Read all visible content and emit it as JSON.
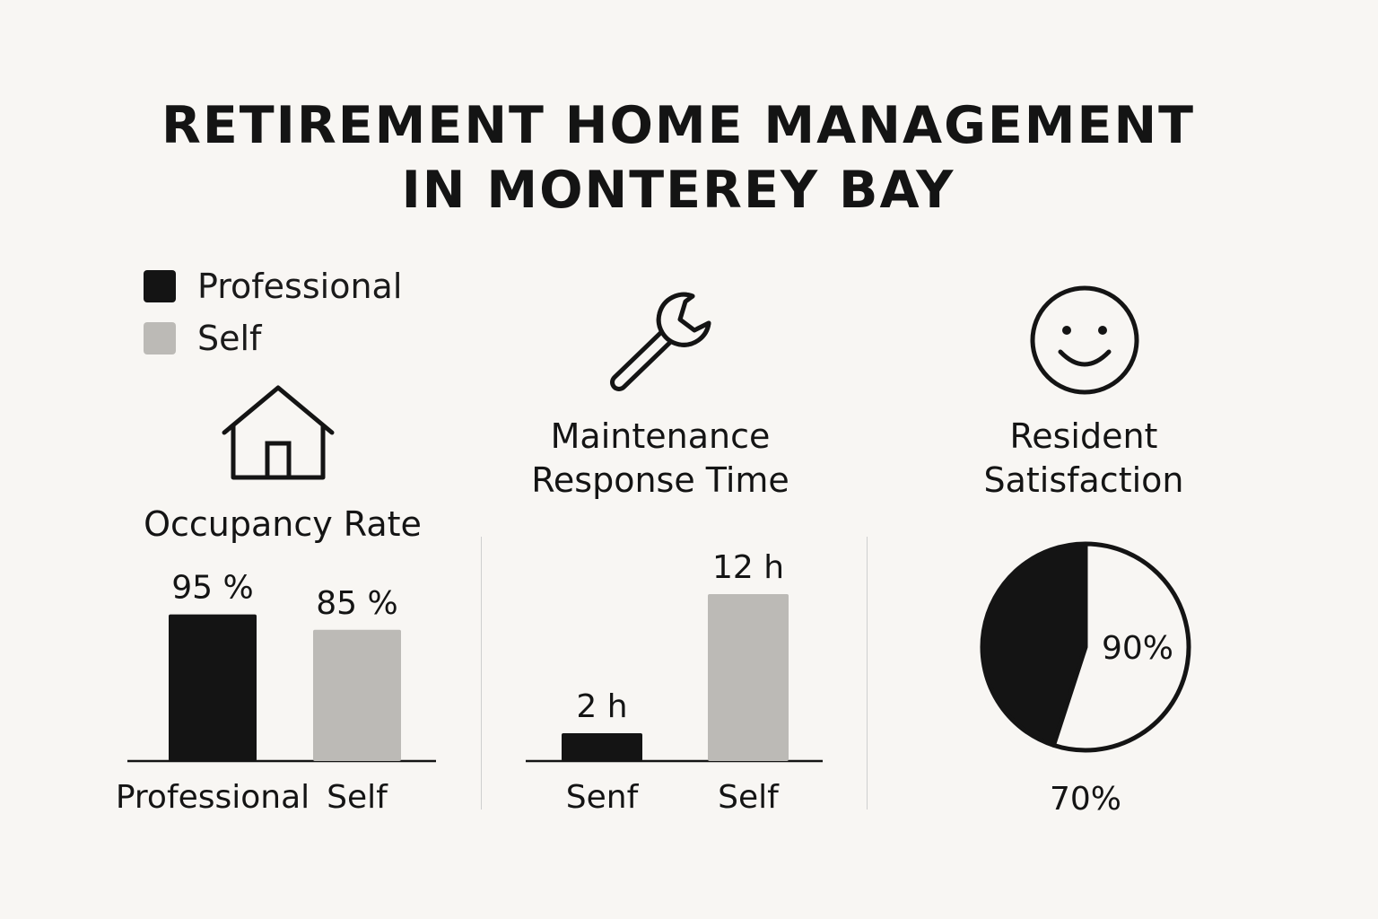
{
  "title": {
    "line1": "RETIREMENT HOME MANAGEMENT",
    "line2": "IN MONTEREY BAY"
  },
  "legend": [
    {
      "label": "Professional",
      "color": "#141414"
    },
    {
      "label": "Self",
      "color": "#bcbab6"
    }
  ],
  "icons": {
    "occupancy": "house-icon",
    "maintenance": "wrench-icon",
    "satisfaction": "smiley-face-icon"
  },
  "panels": {
    "occupancy": {
      "title": "Occupancy Rate"
    },
    "maintenance": {
      "title_line1": "Maintenance",
      "title_line2": "Response Time"
    },
    "satisfaction": {
      "title_line1": "Resident",
      "title_line2": "Satisfaction"
    }
  },
  "chart_data": [
    {
      "type": "bar",
      "title": "Occupancy Rate",
      "categories": [
        "Professional",
        "Self"
      ],
      "values": [
        95,
        85
      ],
      "value_labels": [
        "95 %",
        "85 %"
      ],
      "colors": [
        "#141414",
        "#bcbab6"
      ],
      "unit": "%"
    },
    {
      "type": "bar",
      "title": "Maintenance Response Time",
      "categories": [
        "Senf",
        "Self"
      ],
      "values": [
        2,
        12
      ],
      "value_labels": [
        "2 h",
        "12 h"
      ],
      "colors": [
        "#141414",
        "#bcbab6"
      ],
      "unit": "h"
    },
    {
      "type": "pie",
      "title": "Resident Satisfaction",
      "slices": [
        {
          "value": 45,
          "color": "#141414"
        },
        {
          "value": 55,
          "color": "#f8f6f3"
        }
      ],
      "inner_label": "90%",
      "bottom_label": "70%"
    }
  ]
}
